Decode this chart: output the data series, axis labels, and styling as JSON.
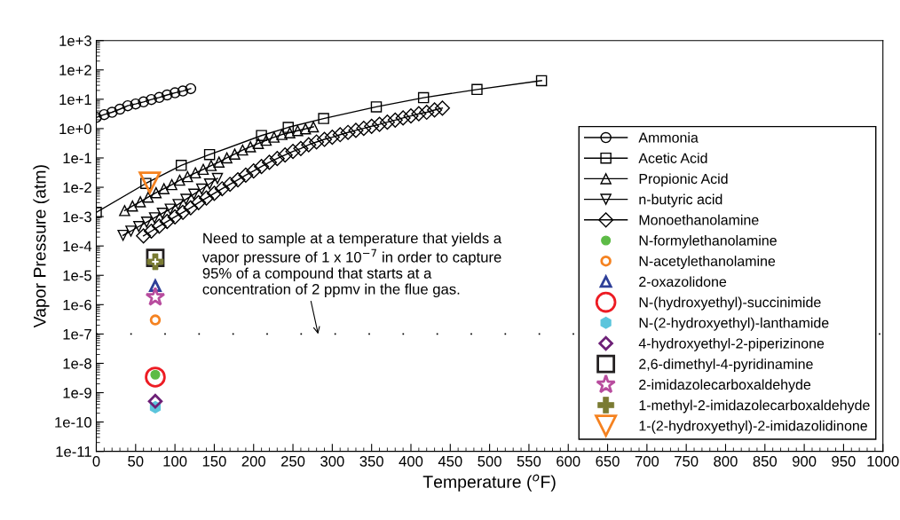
{
  "chart_data": {
    "type": "line",
    "xlabel": "Temperature ($^{o}$F)",
    "ylabel": "Vapor Pressure (atm)",
    "log": "y",
    "xlim": [
      0,
      1000
    ],
    "xticks": [
      0,
      50,
      100,
      150,
      200,
      250,
      300,
      350,
      400,
      450,
      500,
      550,
      600,
      650,
      700,
      750,
      800,
      850,
      900,
      950,
      1000
    ],
    "ylim": [
      1e-11,
      1000
    ],
    "yticks": [
      {
        "value": 1e-11,
        "label": "1e-11"
      },
      {
        "value": 1e-10,
        "label": "1e-10"
      },
      {
        "value": 1e-09,
        "label": "1e-9"
      },
      {
        "value": 1e-08,
        "label": "1e-8"
      },
      {
        "value": 1e-07,
        "label": "1e-7"
      },
      {
        "value": 1e-06,
        "label": "1e-6"
      },
      {
        "value": 1e-05,
        "label": "1e-5"
      },
      {
        "value": 0.0001,
        "label": "1e-4"
      },
      {
        "value": 0.001,
        "label": "1e-3"
      },
      {
        "value": 0.01,
        "label": "1e-2"
      },
      {
        "value": 0.1,
        "label": "1e-1"
      },
      {
        "value": 1,
        "label": "1e+0"
      },
      {
        "value": 10,
        "label": "1e+1"
      },
      {
        "value": 100,
        "label": "1e+2"
      },
      {
        "value": 1000,
        "label": "1e+3"
      }
    ],
    "grid": false,
    "legend": "right",
    "ref_lines": [
      {
        "axis": "y",
        "value": 1e-07,
        "color": "#000000",
        "line_style": "dotted"
      }
    ],
    "annotations": [
      {
        "text": "Need to sample at a temperature that yields a\nvapor pressure of 1 x 10$^{−7}$ in order to capture\n95% of a compound that starts at a\nconcentration of 2 ppmv in the flue gas.",
        "x": 282,
        "y": 1e-07
      }
    ],
    "series": [
      {
        "name": "Ammonia",
        "color": "#000000",
        "marker": "circle",
        "x": [
          0,
          10,
          20,
          30,
          40,
          50,
          60,
          70,
          80,
          90,
          100,
          110,
          120
        ],
        "values": [
          2.4,
          3.0,
          3.6,
          4.6,
          6.0,
          6.9,
          8.1,
          9.8,
          11.5,
          14,
          16.6,
          19,
          23
        ]
      },
      {
        "name": "Acetic Acid",
        "color": "#000000",
        "marker": "square",
        "x": [
          0,
          63,
          108,
          144,
          210,
          244,
          289,
          356,
          416,
          484,
          566
        ],
        "values": [
          0.0014,
          0.0135,
          0.056,
          0.13,
          0.58,
          1.1,
          2.2,
          5.5,
          11.3,
          21.5,
          43
        ]
      },
      {
        "name": "Propionic Acid",
        "color": "#000000",
        "marker": "triangle",
        "x": [
          36,
          46,
          56,
          66,
          76,
          86,
          96,
          106,
          116,
          126,
          136,
          146,
          156,
          166,
          176,
          186,
          196,
          206,
          216,
          226,
          236,
          246,
          256,
          266,
          276
        ],
        "values": [
          0.0016,
          0.0023,
          0.0032,
          0.0046,
          0.0065,
          0.0089,
          0.0123,
          0.0174,
          0.023,
          0.031,
          0.041,
          0.055,
          0.072,
          0.1,
          0.135,
          0.186,
          0.24,
          0.31,
          0.4,
          0.51,
          0.63,
          0.72,
          0.85,
          0.98,
          1.15
        ]
      },
      {
        "name": "n-butyric acid",
        "color": "#000000",
        "marker": "triangle_down",
        "x": [
          34,
          44,
          54,
          64,
          74,
          84,
          94,
          104,
          114,
          124,
          134,
          144,
          154
        ],
        "values": [
          0.00023,
          0.00032,
          0.00046,
          0.00065,
          0.00091,
          0.0013,
          0.0018,
          0.0026,
          0.0039,
          0.0058,
          0.0087,
          0.013,
          0.02
        ]
      },
      {
        "name": "Monoethanolamine",
        "color": "#000000",
        "marker": "diamond",
        "x": [
          60,
          70,
          80,
          90,
          100,
          110,
          120,
          130,
          140,
          150,
          160,
          170,
          180,
          190,
          200,
          210,
          220,
          230,
          240,
          250,
          260,
          270,
          280,
          290,
          300,
          310,
          320,
          330,
          340,
          350,
          360,
          370,
          380,
          390,
          400,
          410,
          420,
          430,
          440
        ],
        "values": [
          0.00022,
          0.00032,
          0.00047,
          0.00068,
          0.00098,
          0.0014,
          0.002,
          0.003,
          0.0043,
          0.0062,
          0.0089,
          0.0126,
          0.018,
          0.026,
          0.036,
          0.051,
          0.071,
          0.095,
          0.126,
          0.166,
          0.21,
          0.28,
          0.35,
          0.43,
          0.51,
          0.62,
          0.74,
          0.87,
          1.02,
          1.2,
          1.4,
          1.66,
          1.95,
          2.3,
          2.7,
          3.2,
          3.6,
          4.3,
          5.0
        ]
      },
      {
        "name": "N-formylethanolamine",
        "type": "scatter",
        "color": "#5dbb46",
        "marker": "circle",
        "x": [
          75
        ],
        "values": [
          4.1e-09
        ]
      },
      {
        "name": "N-acetylethanolamine",
        "type": "scatter",
        "color": "#f58220",
        "marker": "circle",
        "x": [
          75
        ],
        "values": [
          3e-07
        ]
      },
      {
        "name": "2-oxazolidone",
        "type": "scatter",
        "color": "#2e3f98",
        "marker": "triangle",
        "x": [
          75
        ],
        "values": [
          4.4e-06
        ]
      },
      {
        "name": "N-(hydroxyethyl)-succinimide",
        "type": "scatter",
        "color": "#ed1c24",
        "marker": "circle",
        "x": [
          75
        ],
        "values": [
          3.4e-09
        ]
      },
      {
        "name": "N-(2-hydroxyethyl)-lanthamide",
        "type": "scatter",
        "color": "#5bc5dc",
        "x": [
          75
        ],
        "values": [
          3.2e-10
        ]
      },
      {
        "name": "4-hydroxyethyl-2-piperizinone",
        "type": "scatter",
        "color": "#6d2077",
        "marker": "diamond",
        "x": [
          75
        ],
        "values": [
          5.1e-10
        ]
      },
      {
        "name": "2,6-dimethyl-4-pyridinamine",
        "type": "scatter",
        "color": "#231f20",
        "marker": "square",
        "x": [
          75
        ],
        "values": [
          3.9e-05
        ]
      },
      {
        "name": "2-imidazolecarboxaldehyde",
        "type": "scatter",
        "color": "#b84c9e",
        "marker": "star",
        "x": [
          75
        ],
        "values": [
          1.8e-06
        ]
      },
      {
        "name": "1-methyl-2-imidazolecarboxaldehyde",
        "type": "scatter",
        "color": "#7a7b32",
        "marker": "cross",
        "x": [
          75
        ],
        "values": [
          2.9e-05
        ]
      },
      {
        "name": "1-(2-hydroxyethyl)-2-imidazolidinone",
        "type": "scatter",
        "color": "#f58220",
        "marker": "triangle_down",
        "x": [
          68
        ],
        "values": [
          0.0145
        ]
      }
    ]
  }
}
